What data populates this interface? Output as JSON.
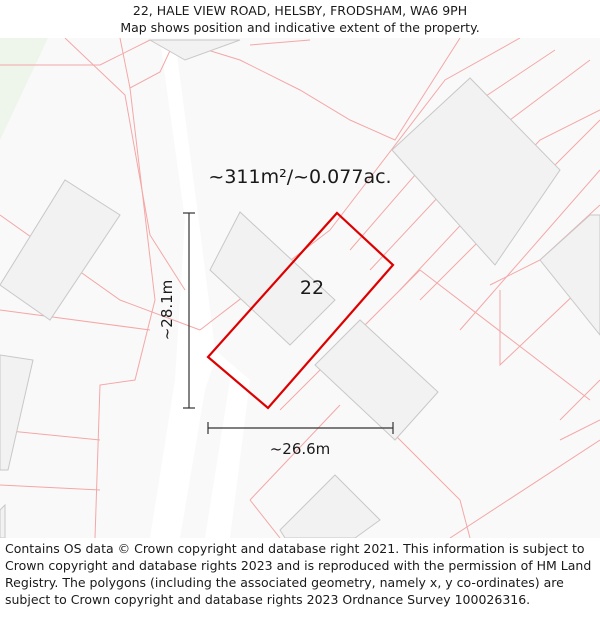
{
  "header": {
    "address": "22, HALE VIEW ROAD, HELSBY, FRODSHAM, WA6 9PH",
    "subtitle": "Map shows position and indicative extent of the property."
  },
  "map": {
    "area_label": "~311m²/~0.077ac.",
    "plot_number": "22",
    "height_measure": "~28.1m",
    "width_measure": "~26.6m",
    "boundary_color": "#dd0000",
    "parcel_line_color": "#f4a7a7",
    "building_fill": "#f2f2f2",
    "building_stroke": "#c8c8c8",
    "green_area_color": "#eef6ec",
    "road_color": "#ffffff",
    "measure_line_color": "#333333"
  },
  "footer": {
    "copyright": "Contains OS data © Crown copyright and database right 2021. This information is subject to Crown copyright and database rights 2023 and is reproduced with the permission of HM Land Registry. The polygons (including the associated geometry, namely x, y co-ordinates) are subject to Crown copyright and database rights 2023 Ordnance Survey 100026316."
  }
}
